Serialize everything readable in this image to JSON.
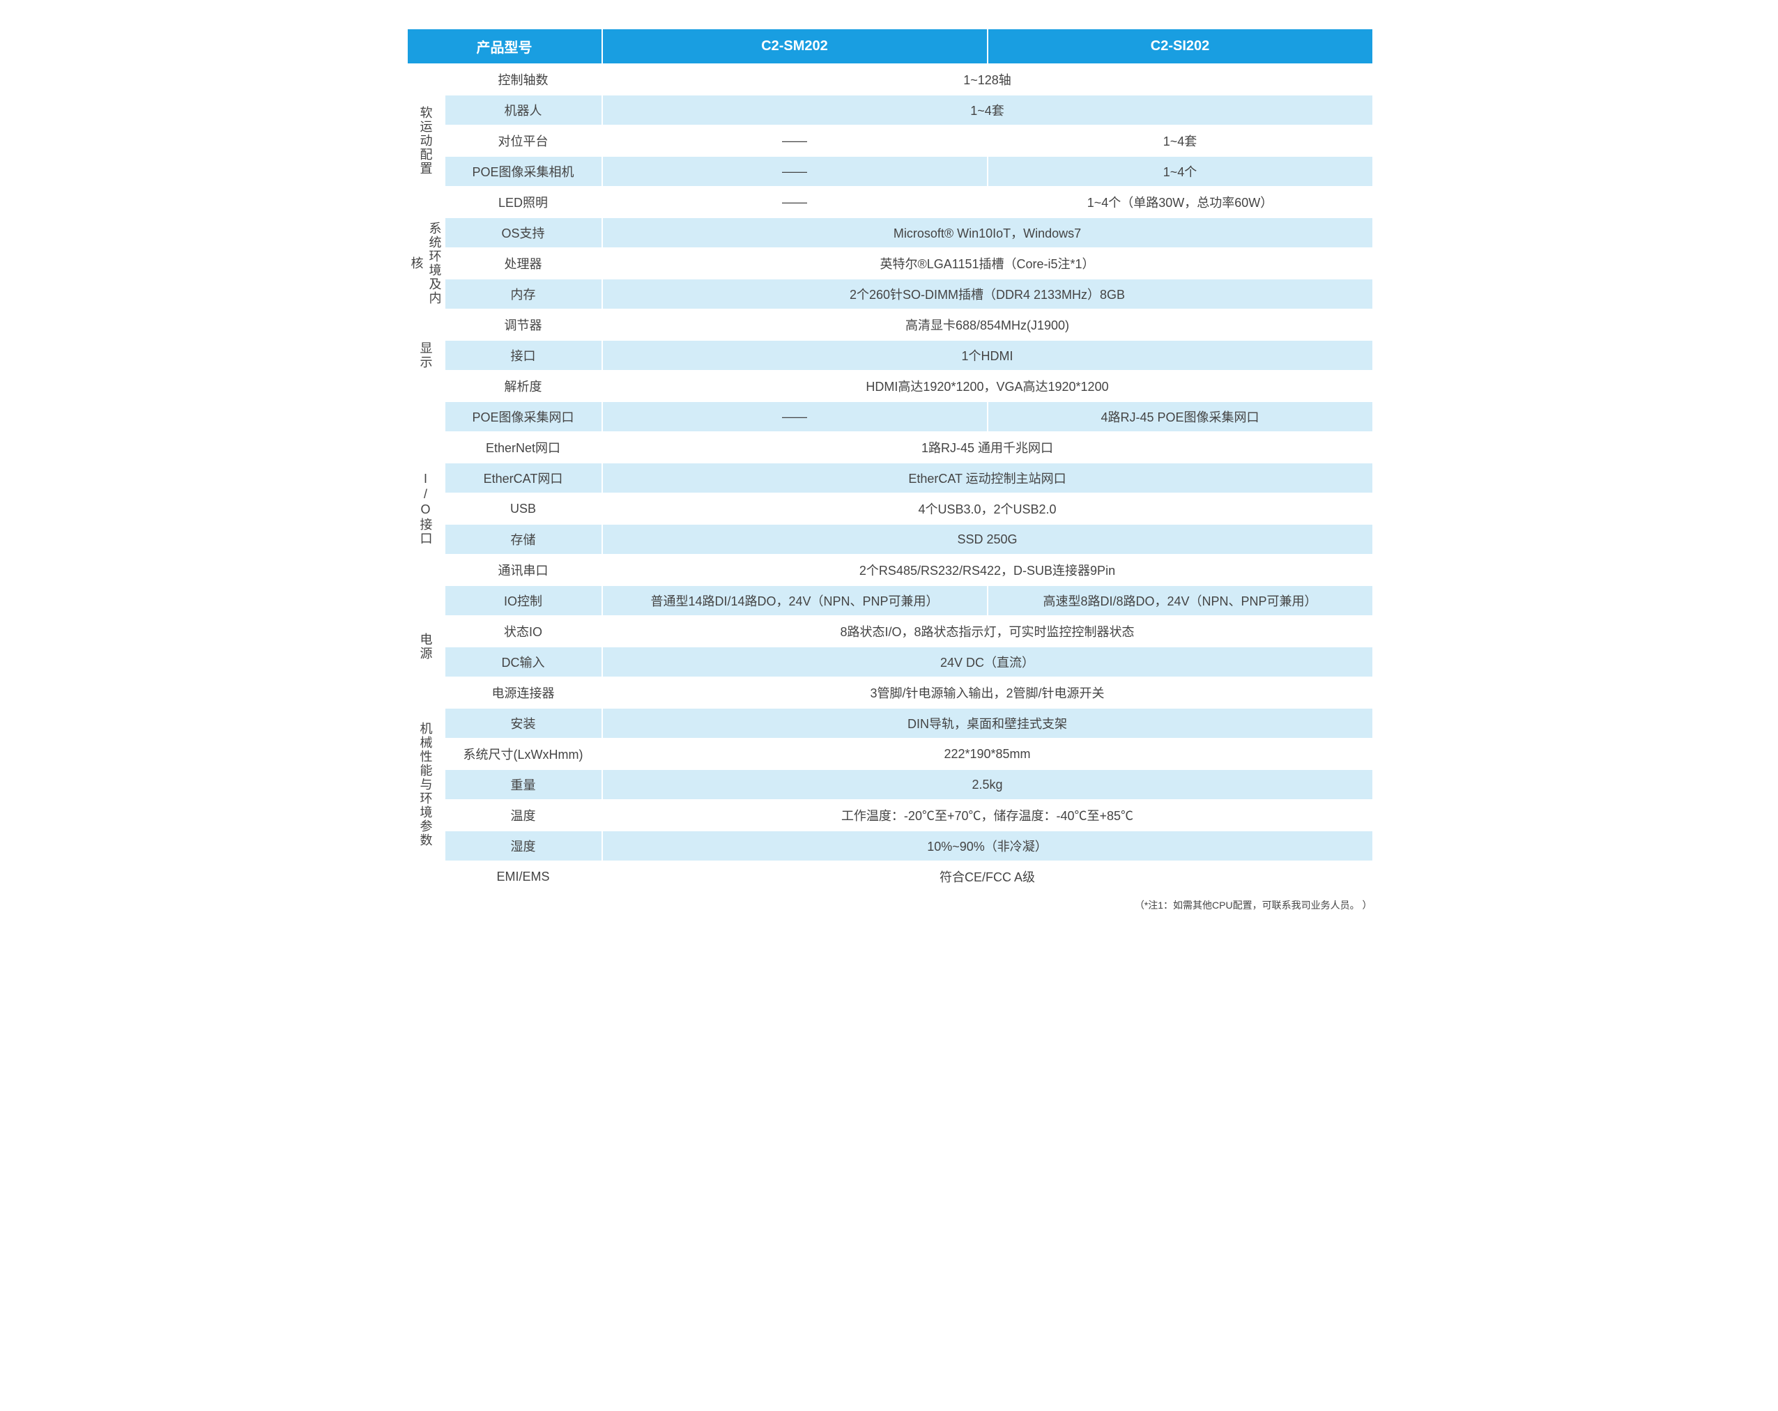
{
  "colors": {
    "header_bg": "#199ee1",
    "header_text": "#ffffff",
    "row_alt_bg": "#d3ecf8",
    "row_bg": "#ffffff",
    "text": "#444444",
    "border": "#ffffff"
  },
  "header": {
    "col_label": "产品型号",
    "model_a": "C2-SM202",
    "model_b": "C2-SI202"
  },
  "sections": [
    {
      "category": "软运动配置",
      "rows": [
        {
          "param": "控制轴数",
          "merged": "1~128轴"
        },
        {
          "param": "机器人",
          "merged": "1~4套"
        },
        {
          "param": "对位平台",
          "a": "——",
          "b": "1~4套"
        },
        {
          "param": "POE图像采集相机",
          "a": "——",
          "b": "1~4个"
        },
        {
          "param": "LED照明",
          "a": "——",
          "b": "1~4个（单路30W，总功率60W）"
        }
      ]
    },
    {
      "category": "系统环境及内核",
      "rows": [
        {
          "param": "OS支持",
          "merged": "Microsoft® Win10IoT，Windows7"
        },
        {
          "param": "处理器",
          "merged": "英特尔®LGA1151插槽（Core-i5注*1）"
        },
        {
          "param": "内存",
          "merged": "2个260针SO-DIMM插槽（DDR4 2133MHz）8GB"
        }
      ]
    },
    {
      "category": "显示",
      "rows": [
        {
          "param": "调节器",
          "merged": "高清显卡688/854MHz(J1900)"
        },
        {
          "param": "接口",
          "merged": "1个HDMI"
        },
        {
          "param": "解析度",
          "merged": "HDMI高达1920*1200，VGA高达1920*1200"
        }
      ]
    },
    {
      "category": "I/O接口",
      "rows": [
        {
          "param": "POE图像采集网口",
          "a": "——",
          "b": "4路RJ-45 POE图像采集网口"
        },
        {
          "param": "EtherNet网口",
          "merged": "1路RJ-45 通用千兆网口"
        },
        {
          "param": "EtherCAT网口",
          "merged": "EtherCAT 运动控制主站网口"
        },
        {
          "param": "USB",
          "merged": "4个USB3.0，2个USB2.0"
        },
        {
          "param": "存储",
          "merged": "SSD 250G"
        },
        {
          "param": "通讯串口",
          "merged": "2个RS485/RS232/RS422，D-SUB连接器9Pin"
        },
        {
          "param": "IO控制",
          "a": "普通型14路DI/14路DO，24V（NPN、PNP可兼用）",
          "b": "高速型8路DI/8路DO，24V（NPN、PNP可兼用）"
        }
      ]
    },
    {
      "category": "电源",
      "rows": [
        {
          "param": "状态IO",
          "merged": "8路状态I/O，8路状态指示灯，可实时监控控制器状态"
        },
        {
          "param": "DC输入",
          "merged": "24V DC（直流）"
        }
      ]
    },
    {
      "category": "机械性能与环境参数",
      "rows": [
        {
          "param": "电源连接器",
          "merged": "3管脚/针电源输入输出，2管脚/针电源开关"
        },
        {
          "param": "安装",
          "merged": "DIN导轨，桌面和壁挂式支架"
        },
        {
          "param": "系统尺寸(LxWxHmm)",
          "merged": "222*190*85mm"
        },
        {
          "param": "重量",
          "merged": "2.5kg"
        },
        {
          "param": "温度",
          "merged": "工作温度：-20℃至+70℃，储存温度：-40℃至+85℃"
        },
        {
          "param": "湿度",
          "merged": "10%~90%（非冷凝）"
        },
        {
          "param": "EMI/EMS",
          "merged": "符合CE/FCC A级"
        }
      ]
    }
  ],
  "footnote": "（*注1：如需其他CPU配置，可联系我司业务人员。 ）"
}
